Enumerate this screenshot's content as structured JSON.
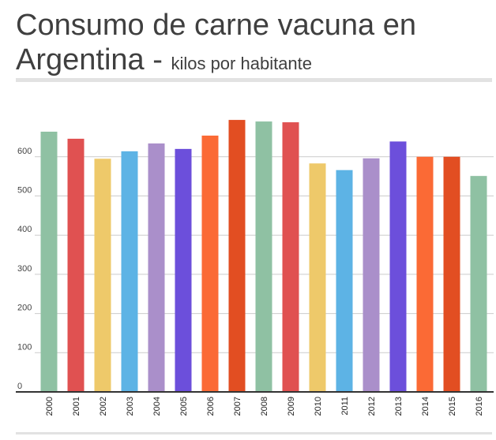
{
  "header": {
    "title_line1": "Consumo de carne vacuna en",
    "title_line2": "Argentina",
    "title_separator": " - ",
    "subtitle": "kilos por habitante"
  },
  "chart_data": {
    "type": "bar",
    "categories": [
      "2000",
      "2001",
      "2002",
      "2003",
      "2004",
      "2005",
      "2006",
      "2007",
      "2008",
      "2009",
      "2010",
      "2011",
      "2012",
      "2013",
      "2014",
      "2015",
      "2016"
    ],
    "values": [
      664,
      646,
      595,
      614,
      634,
      620,
      654,
      694,
      690,
      688,
      583,
      566,
      596,
      639,
      600,
      600,
      551
    ],
    "colors": [
      "#8fc1a3",
      "#e05151",
      "#eec96a",
      "#5db3e5",
      "#aa8fca",
      "#6c4fdb",
      "#fb6a35",
      "#e24e22",
      "#8fc1a3",
      "#e05151",
      "#eec96a",
      "#5db3e5",
      "#aa8fca",
      "#6c4fdb",
      "#fb6a35",
      "#e24e22",
      "#8fc1a3"
    ],
    "yticks": [
      0,
      100,
      200,
      300,
      400,
      500,
      600
    ],
    "ylim": [
      0,
      700
    ],
    "grid": true,
    "legend": "none"
  }
}
